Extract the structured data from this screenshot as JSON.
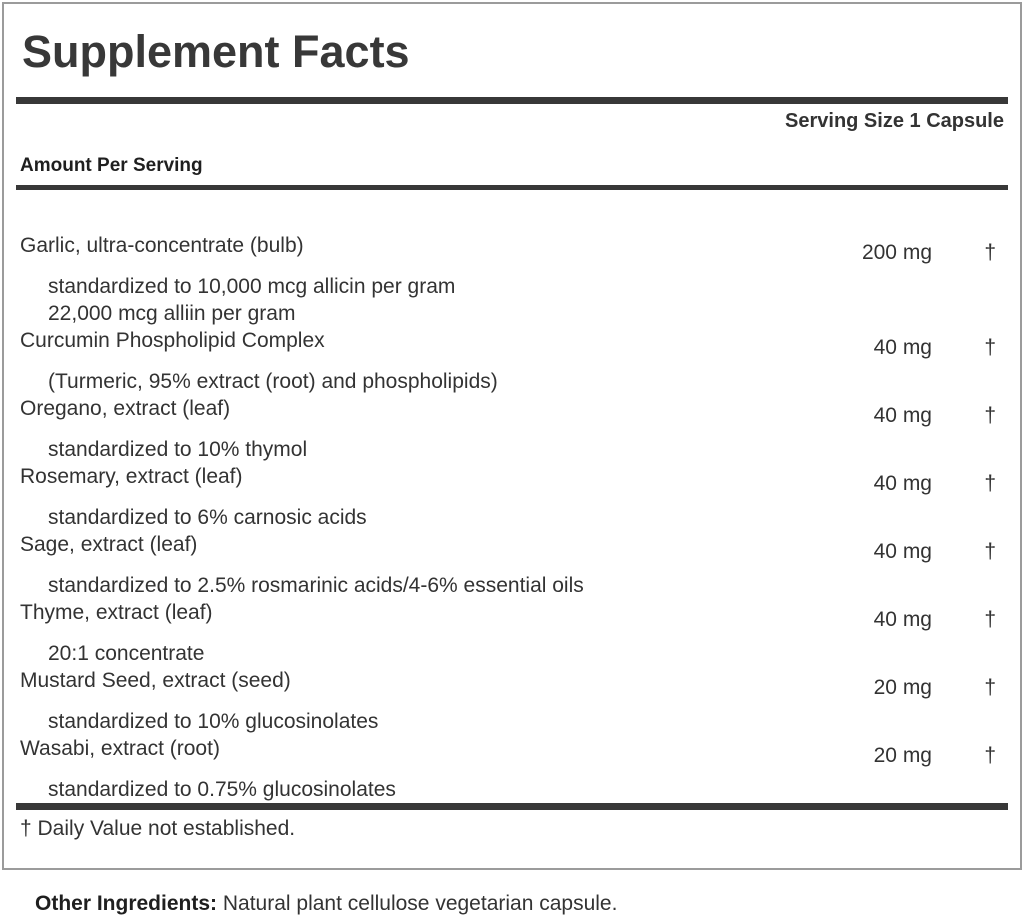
{
  "label": {
    "title": "Supplement Facts",
    "serving_size": "Serving Size 1 Capsule",
    "amount_header": "Amount Per Serving",
    "rows": [
      {
        "name": "Garlic, ultra-concentrate (bulb)",
        "amount": "200 mg",
        "dv": "†",
        "details": [
          "standardized to 10,000 mcg allicin per gram",
          "22,000 mcg alliin per gram"
        ]
      },
      {
        "name": "Curcumin Phospholipid Complex",
        "amount": "40 mg",
        "dv": "†",
        "details": [
          "(Turmeric, 95% extract (root) and phospholipids)"
        ]
      },
      {
        "name": "Oregano, extract (leaf)",
        "amount": "40 mg",
        "dv": "†",
        "details": [
          "standardized to 10% thymol"
        ]
      },
      {
        "name": "Rosemary, extract (leaf)",
        "amount": "40 mg",
        "dv": "†",
        "details": [
          "standardized to 6% carnosic acids"
        ]
      },
      {
        "name": "Sage, extract (leaf)",
        "amount": "40 mg",
        "dv": "†",
        "details": [
          "standardized to 2.5% rosmarinic acids/4-6% essential oils"
        ]
      },
      {
        "name": "Thyme, extract (leaf)",
        "amount": "40 mg",
        "dv": "†",
        "details": [
          "20:1 concentrate"
        ]
      },
      {
        "name": "Mustard Seed, extract (seed)",
        "amount": "20 mg",
        "dv": "†",
        "details": [
          "standardized to 10% glucosinolates"
        ]
      },
      {
        "name": "Wasabi, extract (root)",
        "amount": "20 mg",
        "dv": "†",
        "details": [
          "standardized to 0.75% glucosinolates"
        ]
      }
    ],
    "footnote": "† Daily Value not established.",
    "other_ingredients_label": "Other Ingredients:",
    "other_ingredients_text": "Natural plant cellulose vegetarian capsule.",
    "colors": {
      "text": "#333333",
      "bar": "#383838",
      "border": "#9b9b9b",
      "background": "#ffffff"
    }
  }
}
